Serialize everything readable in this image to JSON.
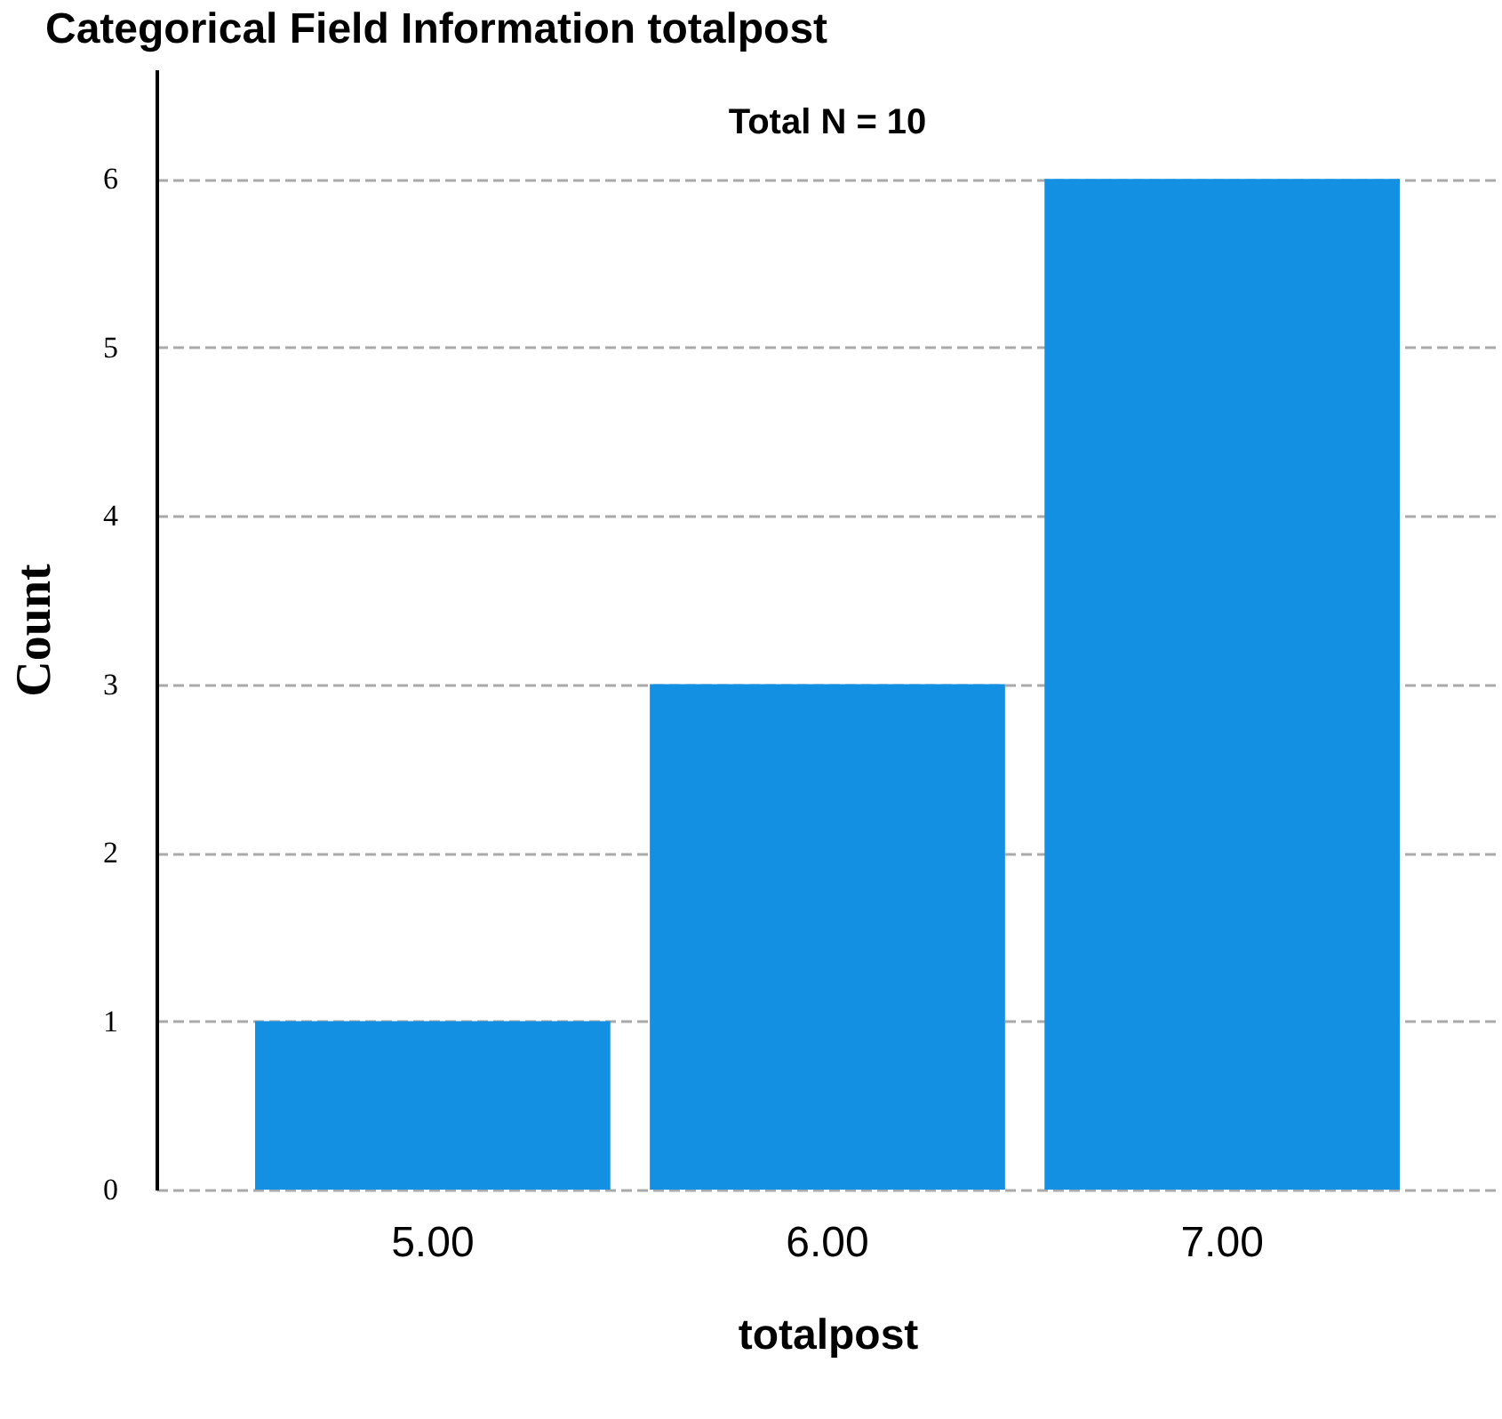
{
  "chart_data": {
    "type": "bar",
    "title": "Categorical Field Information totalpost",
    "xlabel": "totalpost",
    "ylabel": "Count",
    "categories": [
      "5.00",
      "6.00",
      "7.00"
    ],
    "values": [
      1,
      3,
      6
    ],
    "color": "#1490e3",
    "ylim": [
      0,
      6.65
    ],
    "yticks": [
      0,
      1,
      2,
      3,
      4,
      5,
      6
    ],
    "grid": "y",
    "line_style": "dashed",
    "annotations": [
      "Total N =  10"
    ]
  }
}
